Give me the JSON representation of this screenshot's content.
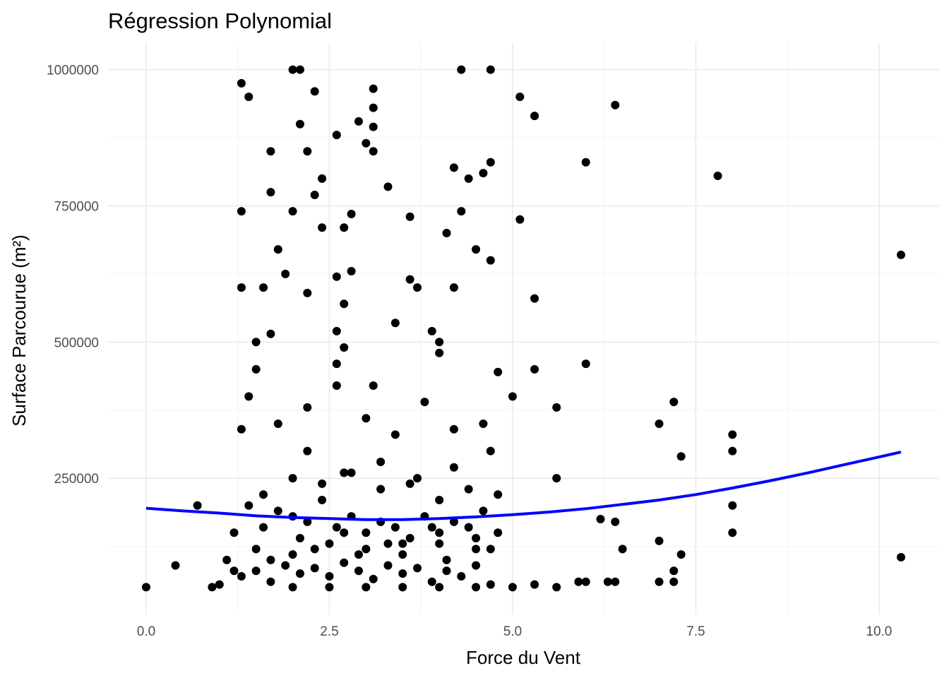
{
  "chart_data": {
    "type": "scatter",
    "title": "Régression Polynomial",
    "xlabel": "Force du Vent",
    "ylabel": "Surface Parcourue (m²)",
    "xlim": [
      -0.52,
      10.82
    ],
    "ylim": [
      0,
      1050000
    ],
    "x_ticks": [
      0.0,
      2.5,
      5.0,
      7.5,
      10.0
    ],
    "x_tick_labels": [
      "0.0",
      "2.5",
      "5.0",
      "7.5",
      "10.0"
    ],
    "y_ticks": [
      250000,
      500000,
      750000,
      1000000
    ],
    "y_tick_labels": [
      "250000",
      "500000",
      "750000",
      "1000000"
    ],
    "grid": true,
    "legend": "none",
    "colors": {
      "points": "#000000",
      "fit_line": "#0000ff"
    },
    "series": [
      {
        "type": "scatter",
        "x": [
          0.0,
          0.4,
          0.7,
          0.9,
          1.0,
          1.1,
          1.2,
          1.3,
          1.3,
          1.3,
          1.3,
          1.4,
          1.5,
          1.5,
          1.6,
          1.7,
          1.7,
          1.7,
          1.8,
          1.9,
          2.0,
          2.0,
          2.1,
          2.1,
          2.2,
          2.2,
          2.3,
          2.3,
          2.4,
          2.4,
          2.6,
          2.6,
          2.7,
          2.7,
          2.8,
          2.8,
          2.9,
          3.0,
          3.1,
          3.1,
          3.1,
          3.1,
          3.3,
          3.4,
          3.6,
          3.6,
          3.7,
          3.9,
          4.0,
          4.1,
          4.2,
          4.2,
          4.3,
          4.3,
          4.4,
          4.5,
          4.6,
          4.7,
          4.7,
          4.7,
          4.8,
          5.0,
          5.1,
          5.1,
          5.3,
          5.3,
          5.3,
          5.6,
          5.6,
          6.0,
          6.0,
          6.2,
          6.4,
          6.4,
          6.5,
          7.0,
          7.0,
          7.2,
          7.2,
          7.3,
          7.3,
          7.8,
          8.0,
          8.0,
          8.0,
          8.0,
          10.3,
          10.3,
          1.2,
          1.4,
          1.6,
          1.8,
          2.0,
          2.2,
          2.4,
          2.6,
          2.8,
          3.0,
          3.2,
          3.4,
          3.6,
          3.8,
          4.0,
          4.2,
          4.4,
          4.6,
          4.8,
          1.3,
          1.5,
          1.7,
          1.9,
          2.1,
          2.3,
          2.5,
          2.7,
          2.9,
          3.1,
          3.3,
          3.5,
          3.7,
          3.9,
          4.1,
          4.3,
          4.5,
          4.7,
          2.0,
          2.5,
          3.0,
          3.5,
          4.0,
          4.5,
          1.5,
          2.0,
          2.5,
          3.0,
          3.5,
          4.0,
          4.5,
          2.2,
          2.7,
          3.2,
          3.7,
          4.2,
          4.7,
          1.4,
          1.8,
          2.2,
          2.6,
          3.0,
          3.4,
          3.8,
          4.2,
          4.6,
          1.6,
          2.4,
          3.2,
          4.0,
          4.8,
          2.0,
          2.8,
          3.6,
          4.4,
          1.7,
          2.3,
          2.9,
          3.5,
          4.1,
          4.7,
          2.1,
          2.7,
          3.3,
          3.9,
          4.5,
          5.0,
          5.3,
          5.6,
          5.9,
          6.0,
          6.3,
          6.4,
          7.0,
          7.2,
          2.6,
          2.7,
          4.0,
          2.6,
          3.1
        ],
        "y": [
          50000,
          90000,
          200000,
          50000,
          55000,
          100000,
          80000,
          975000,
          740000,
          600000,
          340000,
          950000,
          500000,
          450000,
          600000,
          850000,
          775000,
          515000,
          670000,
          625000,
          1000000,
          740000,
          1000000,
          900000,
          850000,
          590000,
          960000,
          770000,
          800000,
          710000,
          880000,
          620000,
          710000,
          570000,
          735000,
          630000,
          905000,
          865000,
          965000,
          930000,
          895000,
          850000,
          785000,
          535000,
          730000,
          615000,
          600000,
          520000,
          500000,
          700000,
          820000,
          600000,
          1000000,
          740000,
          800000,
          670000,
          810000,
          1000000,
          830000,
          650000,
          445000,
          400000,
          950000,
          725000,
          915000,
          580000,
          450000,
          380000,
          250000,
          830000,
          460000,
          175000,
          935000,
          170000,
          120000,
          350000,
          135000,
          390000,
          80000,
          290000,
          110000,
          805000,
          330000,
          300000,
          200000,
          150000,
          660000,
          105000,
          150000,
          200000,
          160000,
          190000,
          180000,
          170000,
          210000,
          160000,
          180000,
          150000,
          170000,
          160000,
          140000,
          180000,
          150000,
          170000,
          160000,
          190000,
          150000,
          70000,
          80000,
          60000,
          90000,
          75000,
          85000,
          70000,
          95000,
          80000,
          65000,
          90000,
          75000,
          85000,
          60000,
          80000,
          70000,
          90000,
          55000,
          50000,
          50000,
          50000,
          50000,
          50000,
          50000,
          120000,
          110000,
          130000,
          120000,
          110000,
          130000,
          120000,
          300000,
          260000,
          280000,
          250000,
          270000,
          300000,
          400000,
          350000,
          380000,
          420000,
          360000,
          330000,
          390000,
          340000,
          350000,
          220000,
          240000,
          230000,
          210000,
          220000,
          250000,
          260000,
          240000,
          230000,
          100000,
          120000,
          110000,
          130000,
          100000,
          120000,
          140000,
          150000,
          130000,
          160000,
          140000,
          50000,
          55000,
          50000,
          60000,
          60000,
          60000,
          60000,
          60000,
          60000,
          520000,
          490000,
          480000,
          460000,
          420000
        ]
      },
      {
        "type": "line",
        "name": "",
        "x": [
          0.0,
          0.5,
          1.0,
          1.5,
          2.0,
          2.5,
          3.0,
          3.5,
          4.0,
          4.5,
          5.0,
          5.5,
          6.0,
          6.5,
          7.0,
          7.5,
          8.0,
          8.5,
          9.0,
          9.5,
          10.0,
          10.3
        ],
        "y": [
          195000,
          190000,
          186000,
          181000,
          178000,
          176000,
          174000,
          174000,
          176000,
          179000,
          183000,
          188000,
          194000,
          202000,
          210000,
          220000,
          232000,
          245000,
          259000,
          274000,
          289000,
          298000
        ]
      }
    ]
  }
}
